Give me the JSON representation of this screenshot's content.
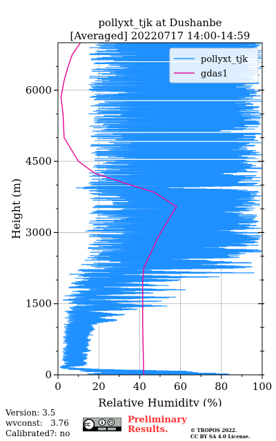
{
  "chart_data": {
    "type": "line",
    "title": "pollyxt_tjk at Dushanbe",
    "subtitle": "[Averaged] 20220717 14:00-14:59",
    "xlabel": "Relative Humidity (%)",
    "ylabel": "Height (m)",
    "xlim": [
      0,
      100
    ],
    "ylim": [
      0,
      7000
    ],
    "xticks": [
      0,
      20,
      40,
      60,
      80,
      100
    ],
    "yticks": [
      0,
      1500,
      3000,
      4500,
      6000
    ],
    "grid": true,
    "legend_position": "top-right",
    "series": [
      {
        "name": "pollyxt_tjk",
        "color": "#1e90ff",
        "note_style": "noisy profile filling plot; points are [rh, height]",
        "points": [
          [
            100,
            0
          ],
          [
            82,
            25
          ],
          [
            76,
            55
          ],
          [
            56,
            90
          ],
          [
            29,
            110
          ],
          [
            12,
            135
          ],
          [
            2,
            165
          ],
          [
            13,
            190
          ],
          [
            15,
            230
          ],
          [
            14,
            270
          ],
          [
            13,
            310
          ],
          [
            15,
            350
          ],
          [
            14,
            390
          ],
          [
            16,
            430
          ],
          [
            13,
            470
          ],
          [
            17,
            510
          ],
          [
            15,
            550
          ],
          [
            14,
            590
          ],
          [
            16,
            630
          ],
          [
            15,
            680
          ],
          [
            17,
            720
          ],
          [
            16,
            760
          ],
          [
            15,
            800
          ],
          [
            18,
            840
          ],
          [
            16,
            880
          ],
          [
            17,
            920
          ],
          [
            19,
            960
          ],
          [
            18,
            1000
          ],
          [
            17,
            1040
          ],
          [
            20,
            1080
          ],
          [
            26,
            1120
          ],
          [
            34,
            1150
          ],
          [
            21,
            1190
          ],
          [
            24,
            1230
          ],
          [
            36,
            1260
          ],
          [
            28,
            1300
          ],
          [
            13,
            1340
          ],
          [
            44,
            1380
          ],
          [
            29,
            1410
          ],
          [
            56,
            1450
          ],
          [
            43,
            1480
          ],
          [
            24,
            1520
          ],
          [
            58,
            1550
          ],
          [
            5,
            1580
          ],
          [
            47,
            1610
          ],
          [
            63,
            1640
          ],
          [
            14,
            1670
          ],
          [
            35,
            1700
          ],
          [
            52,
            1730
          ],
          [
            28,
            1760
          ],
          [
            67,
            1790
          ],
          [
            42,
            1820
          ],
          [
            19,
            1850
          ],
          [
            60,
            1880
          ],
          [
            48,
            1910
          ],
          [
            28,
            1940
          ],
          [
            54,
            1970
          ],
          [
            64,
            2000
          ],
          [
            37,
            2030
          ],
          [
            86,
            2060
          ],
          [
            50,
            2090
          ],
          [
            28,
            2120
          ],
          [
            100,
            2150
          ],
          [
            62,
            2180
          ],
          [
            36,
            2210
          ],
          [
            89,
            2240
          ],
          [
            100,
            2280
          ],
          [
            70,
            2320
          ],
          [
            100,
            2360
          ],
          [
            84,
            2400
          ],
          [
            60,
            2440
          ],
          [
            100,
            2480
          ],
          [
            88,
            2520
          ],
          [
            100,
            2560
          ],
          [
            100,
            2640
          ],
          [
            75,
            2680
          ],
          [
            100,
            2720
          ],
          [
            96,
            2760
          ],
          [
            100,
            2800
          ],
          [
            100,
            3000
          ],
          [
            81,
            3040
          ],
          [
            100,
            3080
          ],
          [
            100,
            3400
          ],
          [
            90,
            3440
          ],
          [
            100,
            3480
          ],
          [
            100,
            3900
          ],
          [
            53,
            3940
          ],
          [
            100,
            3980
          ],
          [
            100,
            4200
          ],
          [
            87,
            4240
          ],
          [
            100,
            4280
          ],
          [
            100,
            5100
          ],
          [
            82,
            5140
          ],
          [
            100,
            5180
          ],
          [
            100,
            7000
          ]
        ]
      },
      {
        "name": "gdas1",
        "color": "#e60f9a",
        "points": [
          [
            42,
            0
          ],
          [
            41.5,
            1000
          ],
          [
            41.5,
            2000
          ],
          [
            42,
            2250
          ],
          [
            49,
            2900
          ],
          [
            58,
            3550
          ],
          [
            47,
            3850
          ],
          [
            32,
            4050
          ],
          [
            18,
            4250
          ],
          [
            10,
            4500
          ],
          [
            3,
            5000
          ],
          [
            2.5,
            5500
          ],
          [
            1.5,
            5850
          ],
          [
            3,
            6200
          ],
          [
            5,
            6500
          ],
          [
            7,
            6750
          ],
          [
            11,
            7000
          ]
        ]
      }
    ]
  },
  "footer": {
    "version_line": "Version: 3.5",
    "wvconst_line": "wvconst:   3.76",
    "calibrated_line": "Calibrated?: no",
    "preliminary_line1": "Preliminary",
    "preliminary_line2": "Results.",
    "copyright_line1": "© TROPOS 2022.",
    "copyright_line2": "CC BY SA 4.0 License.",
    "license_icon": "cc-by-sa-icon"
  }
}
